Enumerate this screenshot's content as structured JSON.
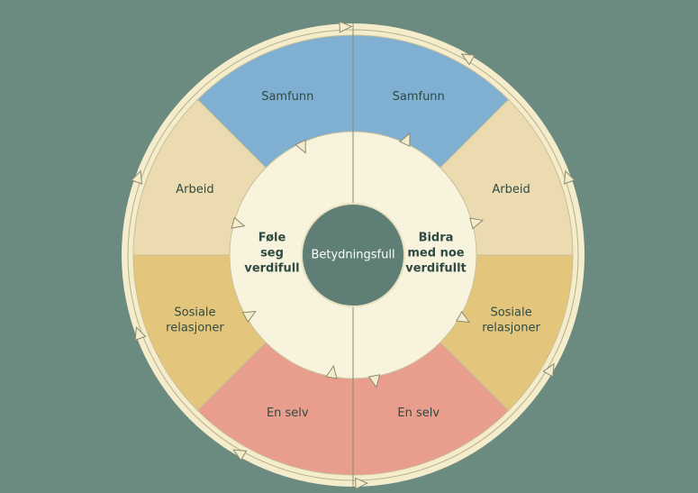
{
  "center_label": "Betydningsfull",
  "left_label": [
    "Føle",
    "seg",
    "verdifull"
  ],
  "right_label": [
    "Bidra",
    "med noe",
    "verdifullt"
  ],
  "sectors_left": [
    [
      "Samfunn"
    ],
    [
      "Arbeid"
    ],
    [
      "Sosiale",
      "relasjoner"
    ],
    [
      "En selv"
    ]
  ],
  "sectors_right": [
    [
      "Samfunn"
    ],
    [
      "Arbeid"
    ],
    [
      "Sosiale",
      "relasjoner"
    ],
    [
      "En selv"
    ]
  ]
}
